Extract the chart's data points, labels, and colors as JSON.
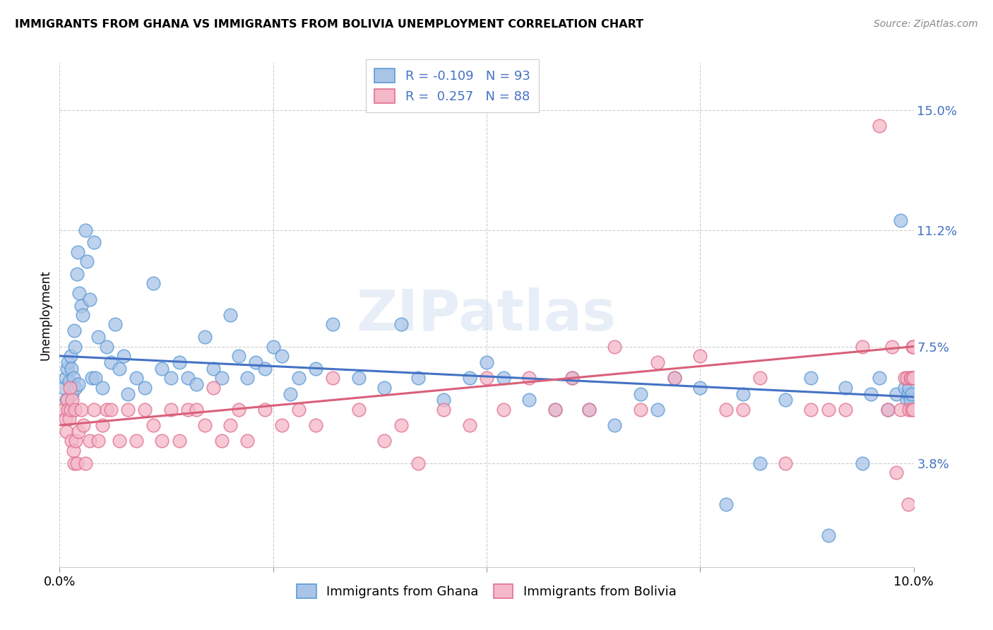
{
  "title": "IMMIGRANTS FROM GHANA VS IMMIGRANTS FROM BOLIVIA UNEMPLOYMENT CORRELATION CHART",
  "source": "Source: ZipAtlas.com",
  "ylabel": "Unemployment",
  "ytick_labels": [
    "3.8%",
    "7.5%",
    "11.2%",
    "15.0%"
  ],
  "ytick_values": [
    3.8,
    7.5,
    11.2,
    15.0
  ],
  "xlim": [
    0.0,
    10.0
  ],
  "ylim": [
    0.5,
    16.5
  ],
  "ghana_color": "#aac4e8",
  "ghana_edge_color": "#5b9bd5",
  "bolivia_color": "#f5b8c8",
  "bolivia_edge_color": "#e07090",
  "ghana_line_color": "#4472c4",
  "bolivia_line_color": "#d9607a",
  "legend_label_ghana": "Immigrants from Ghana",
  "legend_label_bolivia": "Immigrants from Bolivia",
  "ghana_R": -0.109,
  "ghana_N": 93,
  "bolivia_R": 0.257,
  "bolivia_N": 88,
  "ghana_line_y0": 7.2,
  "ghana_line_y1": 5.9,
  "bolivia_line_y0": 5.0,
  "bolivia_line_y1": 7.5,
  "ghana_x": [
    0.05,
    0.07,
    0.08,
    0.09,
    0.1,
    0.11,
    0.12,
    0.13,
    0.14,
    0.15,
    0.16,
    0.17,
    0.18,
    0.19,
    0.2,
    0.21,
    0.22,
    0.23,
    0.25,
    0.27,
    0.3,
    0.32,
    0.35,
    0.38,
    0.4,
    0.42,
    0.45,
    0.5,
    0.55,
    0.6,
    0.65,
    0.7,
    0.75,
    0.8,
    0.9,
    1.0,
    1.1,
    1.2,
    1.3,
    1.4,
    1.5,
    1.6,
    1.7,
    1.8,
    1.9,
    2.0,
    2.1,
    2.2,
    2.3,
    2.4,
    2.5,
    2.6,
    2.7,
    2.8,
    3.0,
    3.2,
    3.5,
    3.8,
    4.0,
    4.2,
    4.5,
    4.8,
    5.0,
    5.2,
    5.5,
    5.8,
    6.0,
    6.2,
    6.5,
    6.8,
    7.0,
    7.2,
    7.5,
    7.8,
    8.0,
    8.2,
    8.5,
    8.8,
    9.0,
    9.2,
    9.4,
    9.5,
    9.6,
    9.7,
    9.8,
    9.85,
    9.9,
    9.92,
    9.94,
    9.95,
    9.96,
    9.97,
    9.98
  ],
  "ghana_y": [
    6.2,
    6.5,
    5.8,
    6.8,
    7.0,
    6.4,
    5.5,
    7.2,
    6.8,
    6.0,
    6.5,
    8.0,
    7.5,
    6.2,
    9.8,
    10.5,
    6.3,
    9.2,
    8.8,
    8.5,
    11.2,
    10.2,
    9.0,
    6.5,
    10.8,
    6.5,
    7.8,
    6.2,
    7.5,
    7.0,
    8.2,
    6.8,
    7.2,
    6.0,
    6.5,
    6.2,
    9.5,
    6.8,
    6.5,
    7.0,
    6.5,
    6.3,
    7.8,
    6.8,
    6.5,
    8.5,
    7.2,
    6.5,
    7.0,
    6.8,
    7.5,
    7.2,
    6.0,
    6.5,
    6.8,
    8.2,
    6.5,
    6.2,
    8.2,
    6.5,
    5.8,
    6.5,
    7.0,
    6.5,
    5.8,
    5.5,
    6.5,
    5.5,
    5.0,
    6.0,
    5.5,
    6.5,
    6.2,
    2.5,
    6.0,
    3.8,
    5.8,
    6.5,
    1.5,
    6.2,
    3.8,
    6.0,
    6.5,
    5.5,
    6.0,
    11.5,
    6.2,
    5.8,
    6.0,
    6.2,
    5.8,
    6.5,
    6.0
  ],
  "bolivia_x": [
    0.05,
    0.07,
    0.08,
    0.09,
    0.1,
    0.11,
    0.12,
    0.13,
    0.14,
    0.15,
    0.16,
    0.17,
    0.18,
    0.19,
    0.2,
    0.22,
    0.25,
    0.28,
    0.3,
    0.35,
    0.4,
    0.45,
    0.5,
    0.55,
    0.6,
    0.7,
    0.8,
    0.9,
    1.0,
    1.1,
    1.2,
    1.3,
    1.4,
    1.5,
    1.6,
    1.7,
    1.8,
    1.9,
    2.0,
    2.1,
    2.2,
    2.4,
    2.6,
    2.8,
    3.0,
    3.2,
    3.5,
    3.8,
    4.0,
    4.2,
    4.5,
    4.8,
    5.0,
    5.2,
    5.5,
    5.8,
    6.0,
    6.2,
    6.5,
    6.8,
    7.0,
    7.2,
    7.5,
    7.8,
    8.0,
    8.2,
    8.5,
    8.8,
    9.0,
    9.2,
    9.4,
    9.6,
    9.7,
    9.75,
    9.8,
    9.85,
    9.9,
    9.92,
    9.94,
    9.95,
    9.96,
    9.97,
    9.98,
    9.99,
    9.995,
    9.997,
    9.998,
    9.999
  ],
  "bolivia_y": [
    5.5,
    5.2,
    4.8,
    5.8,
    5.5,
    5.2,
    6.2,
    5.5,
    4.5,
    5.8,
    4.2,
    3.8,
    5.5,
    4.5,
    3.8,
    4.8,
    5.5,
    5.0,
    3.8,
    4.5,
    5.5,
    4.5,
    5.0,
    5.5,
    5.5,
    4.5,
    5.5,
    4.5,
    5.5,
    5.0,
    4.5,
    5.5,
    4.5,
    5.5,
    5.5,
    5.0,
    6.2,
    4.5,
    5.0,
    5.5,
    4.5,
    5.5,
    5.0,
    5.5,
    5.0,
    6.5,
    5.5,
    4.5,
    5.0,
    3.8,
    5.5,
    5.0,
    6.5,
    5.5,
    6.5,
    5.5,
    6.5,
    5.5,
    7.5,
    5.5,
    7.0,
    6.5,
    7.2,
    5.5,
    5.5,
    6.5,
    3.8,
    5.5,
    5.5,
    5.5,
    7.5,
    14.5,
    5.5,
    7.5,
    3.5,
    5.5,
    6.5,
    6.5,
    2.5,
    5.5,
    6.5,
    6.5,
    5.5,
    7.5,
    6.5,
    6.5,
    5.5,
    7.5
  ]
}
